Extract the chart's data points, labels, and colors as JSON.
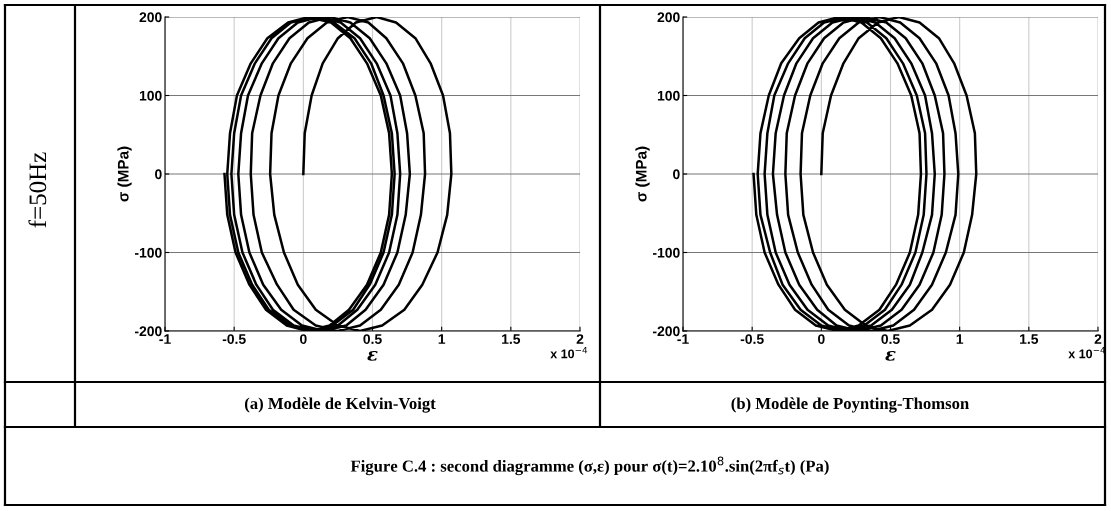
{
  "chart_data": [
    {
      "type": "line",
      "xlabel": "ε",
      "ylabel": "σ (MPa)",
      "xlim": [
        -1,
        2
      ],
      "ylim": [
        -200,
        200
      ],
      "xticks": [
        -1,
        -0.5,
        0,
        0.5,
        1,
        1.5,
        2
      ],
      "yticks": [
        -200,
        -100,
        0,
        100,
        200
      ],
      "grid": true,
      "marker": "none",
      "line_style": "solid",
      "annotations": [
        "x 10$^{−4}$",
        "(a) Modèle de Kelvin-Voigt",
        "f=50Hz"
      ],
      "series": [
        {
          "color": "#000000",
          "x": [
            0.0,
            0.01,
            0.06,
            0.14,
            0.25,
            0.38,
            0.53,
            0.67,
            0.81,
            0.92,
            1.01,
            1.06,
            1.07,
            1.04,
            0.97,
            0.86,
            0.73,
            0.57,
            0.41,
            0.25,
            0.09,
            -0.04,
            -0.14,
            -0.21,
            -0.24,
            -0.23,
            -0.18,
            -0.09,
            0.03,
            0.17,
            0.32,
            0.47,
            0.6,
            0.72,
            0.81,
            0.87,
            0.88,
            0.85,
            0.79,
            0.69,
            0.56,
            0.41,
            0.25,
            0.09,
            -0.07,
            -0.19,
            -0.3,
            -0.36,
            -0.38,
            -0.37,
            -0.31,
            -0.22,
            -0.1,
            0.04,
            0.19,
            0.34,
            0.48,
            0.6,
            0.7,
            0.75,
            0.77,
            0.74,
            0.68,
            0.58,
            0.45,
            0.31,
            0.15,
            -0.01,
            -0.16,
            -0.29,
            -0.39,
            -0.45,
            -0.47,
            -0.45,
            -0.4,
            -0.3,
            -0.18,
            -0.04,
            0.11,
            0.27,
            0.41,
            0.53,
            0.63,
            0.68,
            0.7,
            0.68,
            0.62,
            0.52,
            0.39,
            0.25,
            0.09,
            -0.07,
            -0.22,
            -0.34,
            -0.44,
            -0.5,
            -0.52,
            -0.5,
            -0.45,
            -0.35,
            -0.23,
            -0.09,
            0.07,
            0.22,
            0.37,
            0.49,
            0.58,
            0.64,
            0.66,
            0.64,
            0.58,
            0.48,
            0.36,
            0.21,
            0.05,
            -0.1,
            -0.25,
            -0.37,
            -0.47,
            -0.53,
            -0.55,
            -0.53,
            -0.48,
            -0.38,
            -0.26,
            -0.11,
            0.04,
            0.2,
            0.34,
            0.46,
            0.56,
            0.62,
            0.64,
            0.62,
            0.56,
            0.46,
            0.33,
            0.19,
            0.03,
            -0.12,
            -0.27,
            -0.39,
            -0.49,
            -0.55,
            -0.57
          ],
          "values": [
            0,
            52,
            100,
            141,
            173,
            193,
            200,
            193,
            173,
            141,
            100,
            52,
            0,
            -52,
            -100,
            -141,
            -173,
            -193,
            -200,
            -193,
            -173,
            -141,
            -100,
            -52,
            0,
            52,
            100,
            141,
            173,
            193,
            200,
            193,
            173,
            141,
            100,
            52,
            0,
            -52,
            -100,
            -141,
            -173,
            -193,
            -200,
            -193,
            -173,
            -141,
            -100,
            -52,
            0,
            52,
            100,
            141,
            173,
            193,
            200,
            193,
            173,
            141,
            100,
            52,
            0,
            -52,
            -100,
            -141,
            -173,
            -193,
            -200,
            -193,
            -173,
            -141,
            -100,
            -52,
            0,
            52,
            100,
            141,
            173,
            193,
            200,
            193,
            173,
            141,
            100,
            52,
            0,
            -52,
            -100,
            -141,
            -173,
            -193,
            -200,
            -193,
            -173,
            -141,
            -100,
            -52,
            0,
            52,
            100,
            141,
            173,
            193,
            200,
            193,
            173,
            141,
            100,
            52,
            0,
            -52,
            -100,
            -141,
            -173,
            -193,
            -200,
            -193,
            -173,
            -141,
            -100,
            -52,
            0,
            52,
            100,
            141,
            173,
            193,
            200,
            193,
            173,
            141,
            100,
            52,
            0,
            -52,
            -100,
            -141,
            -173,
            -193,
            -200,
            -193,
            -173,
            -141,
            -100,
            -52,
            0
          ]
        }
      ]
    },
    {
      "type": "line",
      "xlabel": "ε",
      "ylabel": "σ (MPa)",
      "xlim": [
        -1,
        2
      ],
      "ylim": [
        -200,
        200
      ],
      "xticks": [
        -1,
        -0.5,
        0,
        0.5,
        1,
        1.5,
        2
      ],
      "yticks": [
        -200,
        -100,
        0,
        100,
        200
      ],
      "grid": true,
      "marker": "none",
      "line_style": "solid",
      "annotations": [
        "x 10$^{−4}$",
        "(b) Modèle de Poynting-Thomson",
        "Figure C.4 : second diagramme (σ,ε) pour σ(t)=2.10$^{8}$.sin(2πf$_{s}$t) (Pa)"
      ],
      "series": [
        {
          "color": "#000000",
          "x": [
            0.0,
            0.01,
            0.07,
            0.16,
            0.27,
            0.41,
            0.56,
            0.71,
            0.85,
            0.96,
            1.05,
            1.11,
            1.12,
            1.09,
            1.03,
            0.93,
            0.8,
            0.64,
            0.48,
            0.32,
            0.17,
            0.04,
            -0.06,
            -0.13,
            -0.15,
            -0.14,
            -0.08,
            0.01,
            0.13,
            0.27,
            0.42,
            0.57,
            0.71,
            0.83,
            0.92,
            0.97,
            0.99,
            0.97,
            0.9,
            0.8,
            0.67,
            0.52,
            0.36,
            0.2,
            0.05,
            -0.07,
            -0.17,
            -0.24,
            -0.26,
            -0.25,
            -0.19,
            -0.1,
            0.02,
            0.16,
            0.31,
            0.47,
            0.61,
            0.73,
            0.82,
            0.88,
            0.89,
            0.87,
            0.81,
            0.71,
            0.58,
            0.43,
            0.27,
            0.11,
            -0.03,
            -0.16,
            -0.26,
            -0.32,
            -0.35,
            -0.33,
            -0.27,
            -0.18,
            -0.06,
            0.08,
            0.24,
            0.39,
            0.53,
            0.65,
            0.75,
            0.8,
            0.82,
            0.8,
            0.73,
            0.64,
            0.51,
            0.36,
            0.2,
            0.05,
            -0.1,
            -0.23,
            -0.33,
            -0.39,
            -0.41,
            -0.39,
            -0.34,
            -0.24,
            -0.12,
            0.02,
            0.18,
            0.33,
            0.47,
            0.59,
            0.69,
            0.75,
            0.76,
            0.74,
            0.68,
            0.58,
            0.46,
            0.31,
            0.15,
            0.0,
            -0.15,
            -0.28,
            -0.37,
            -0.44,
            -0.46,
            -0.44,
            -0.38,
            -0.29,
            -0.16,
            -0.02,
            0.13,
            0.29,
            0.43,
            0.55,
            0.65,
            0.71,
            0.72,
            0.7,
            0.64,
            0.54,
            0.42,
            0.27,
            0.12,
            -0.04,
            -0.19,
            -0.31,
            -0.41,
            -0.47,
            -0.49
          ],
          "values": [
            0,
            52,
            100,
            141,
            173,
            193,
            200,
            193,
            173,
            141,
            100,
            52,
            0,
            -52,
            -100,
            -141,
            -173,
            -193,
            -200,
            -193,
            -173,
            -141,
            -100,
            -52,
            0,
            52,
            100,
            141,
            173,
            193,
            200,
            193,
            173,
            141,
            100,
            52,
            0,
            -52,
            -100,
            -141,
            -173,
            -193,
            -200,
            -193,
            -173,
            -141,
            -100,
            -52,
            0,
            52,
            100,
            141,
            173,
            193,
            200,
            193,
            173,
            141,
            100,
            52,
            0,
            -52,
            -100,
            -141,
            -173,
            -193,
            -200,
            -193,
            -173,
            -141,
            -100,
            -52,
            0,
            52,
            100,
            141,
            173,
            193,
            200,
            193,
            173,
            141,
            100,
            52,
            0,
            -52,
            -100,
            -141,
            -173,
            -193,
            -200,
            -193,
            -173,
            -141,
            -100,
            -52,
            0,
            52,
            100,
            141,
            173,
            193,
            200,
            193,
            173,
            141,
            100,
            52,
            0,
            -52,
            -100,
            -141,
            -173,
            -193,
            -200,
            -193,
            -173,
            -141,
            -100,
            -52,
            0,
            52,
            100,
            141,
            173,
            193,
            200,
            193,
            173,
            141,
            100,
            52,
            0,
            -52,
            -100,
            -141,
            -173,
            -193,
            -200,
            -193,
            -173,
            -141,
            -100,
            -52,
            0
          ]
        }
      ]
    }
  ]
}
